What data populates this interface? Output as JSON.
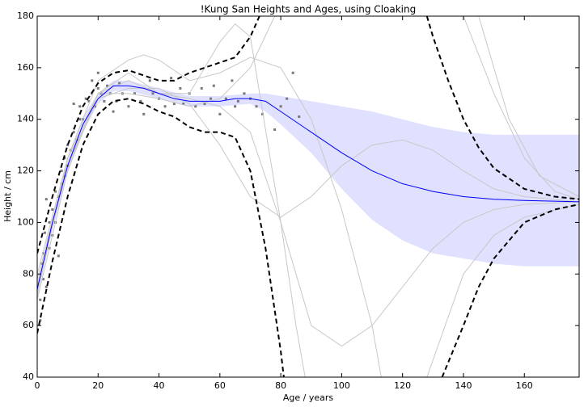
{
  "chart_data": {
    "type": "line",
    "title": "!Kung San Heights and Ages, using Cloaking",
    "x_label": "Age / years",
    "y_label": "Height / cm",
    "xlim": [
      0,
      178
    ],
    "ylim": [
      40,
      180
    ],
    "xticks": [
      0,
      20,
      40,
      60,
      80,
      100,
      120,
      140,
      160
    ],
    "yticks": [
      40,
      60,
      80,
      100,
      120,
      140,
      160,
      180
    ],
    "band": {
      "color": "#e0e0ff",
      "x": [
        0,
        5,
        10,
        15,
        20,
        25,
        30,
        40,
        50,
        60,
        70,
        75,
        80,
        90,
        100,
        110,
        120,
        130,
        140,
        150,
        160,
        178
      ],
      "lower": [
        71,
        97,
        119,
        135,
        146,
        151,
        151,
        148,
        145,
        145,
        146,
        143,
        138,
        127,
        113,
        101,
        93,
        88,
        86,
        84,
        83,
        83
      ],
      "upper": [
        77,
        103,
        125,
        141,
        150,
        155,
        155,
        152,
        149,
        149,
        150,
        150,
        149,
        147,
        145,
        143,
        140,
        137,
        135,
        134,
        134,
        134
      ]
    },
    "points": {
      "color": "#777777",
      "x": [
        1,
        1,
        1.5,
        2,
        2,
        2.5,
        3,
        3,
        4,
        4,
        5,
        5,
        6,
        6,
        7,
        7,
        8,
        8,
        9,
        9,
        10,
        10,
        11,
        12,
        12,
        13,
        14,
        14,
        15,
        16,
        17,
        18,
        18,
        19,
        20,
        20,
        21,
        22,
        23,
        24,
        25,
        26,
        27,
        28,
        30,
        32,
        34,
        35,
        37,
        38,
        40,
        42,
        44,
        45,
        47,
        48,
        50,
        52,
        54,
        55,
        57,
        58,
        60,
        62,
        64,
        65,
        66,
        68,
        70,
        72,
        74,
        78,
        80,
        82,
        84,
        86
      ],
      "values": [
        62,
        70,
        84,
        78,
        88,
        96,
        75,
        109,
        90,
        100,
        95,
        105,
        100,
        112,
        87,
        110,
        115,
        120,
        118,
        125,
        122,
        130,
        128,
        135,
        146,
        132,
        140,
        145,
        140,
        148,
        147,
        150,
        155,
        145,
        152,
        158,
        150,
        147,
        153,
        150,
        143,
        147,
        154,
        150,
        145,
        150,
        147,
        142,
        155,
        150,
        148,
        145,
        156,
        146,
        152,
        146,
        150,
        145,
        152,
        146,
        148,
        153,
        142,
        148,
        155,
        145,
        147,
        150,
        148,
        145,
        142,
        136,
        145,
        148,
        158,
        141
      ]
    },
    "series": [
      {
        "color": "#c8c8c8",
        "dash": false,
        "x": [
          0,
          10,
          20,
          30,
          40,
          50,
          60,
          65,
          70,
          80,
          85,
          88
        ],
        "values": [
          70,
          120,
          150,
          158,
          150,
          150,
          170,
          177,
          172,
          100,
          60,
          40
        ]
      },
      {
        "color": "#c8c8c8",
        "dash": false,
        "x": [
          0,
          10,
          20,
          30,
          40,
          50,
          60,
          70,
          80,
          90,
          100,
          110,
          120,
          130,
          140,
          150,
          160,
          178
        ],
        "values": [
          78,
          122,
          150,
          155,
          150,
          148,
          145,
          135,
          100,
          60,
          52,
          60,
          75,
          90,
          100,
          105,
          107,
          108
        ]
      },
      {
        "color": "#c8c8c8",
        "dash": false,
        "x": [
          0,
          10,
          20,
          30,
          40,
          50,
          60,
          70,
          80,
          90,
          100,
          110,
          120,
          130,
          140,
          150,
          160,
          178
        ],
        "values": [
          75,
          122,
          148,
          152,
          152,
          146,
          130,
          110,
          102,
          110,
          122,
          130,
          132,
          128,
          120,
          113,
          110,
          108
        ]
      },
      {
        "color": "#c8c8c8",
        "dash": false,
        "x": [
          0,
          10,
          20,
          30,
          35,
          40,
          50,
          60,
          70,
          80,
          90,
          100,
          110,
          113
        ],
        "values": [
          72,
          125,
          155,
          163,
          165,
          163,
          155,
          158,
          164,
          160,
          140,
          105,
          60,
          40
        ]
      },
      {
        "color": "#c8c8c8",
        "dash": false,
        "x": [
          0,
          10,
          20,
          30,
          40,
          50,
          60,
          70,
          78
        ],
        "values": [
          80,
          125,
          150,
          150,
          148,
          145,
          148,
          160,
          180
        ]
      },
      {
        "color": "#c8c8c8",
        "dash": false,
        "x": [
          140,
          150,
          160,
          170,
          178
        ],
        "values": [
          180,
          150,
          125,
          112,
          109
        ]
      },
      {
        "color": "#c8c8c8",
        "dash": false,
        "x": [
          145,
          155,
          165,
          178
        ],
        "values": [
          180,
          140,
          118,
          110
        ]
      },
      {
        "color": "#c8c8c8",
        "dash": false,
        "x": [
          128,
          140,
          150,
          160,
          178
        ],
        "values": [
          40,
          80,
          95,
          102,
          107
        ]
      },
      {
        "color": "#0000ff",
        "dash": false,
        "x": [
          0,
          5,
          10,
          15,
          20,
          25,
          30,
          35,
          40,
          45,
          50,
          55,
          60,
          65,
          70,
          75,
          80,
          90,
          100,
          110,
          120,
          130,
          140,
          150,
          160,
          178
        ],
        "values": [
          74,
          100,
          122,
          138,
          148,
          153,
          153,
          152,
          150,
          148,
          147,
          147,
          147,
          148,
          148,
          147,
          143,
          135,
          127,
          120,
          115,
          112,
          110,
          109,
          108.5,
          108
        ]
      },
      {
        "color": "#000000",
        "dash": true,
        "x": [
          0,
          5,
          10,
          15,
          20,
          25,
          30,
          35,
          40,
          45,
          50,
          55,
          60,
          65,
          70,
          73
        ],
        "values": [
          88,
          110,
          130,
          145,
          154,
          158,
          159,
          157,
          155,
          155,
          158,
          160,
          162,
          164,
          172,
          180
        ]
      },
      {
        "color": "#000000",
        "dash": true,
        "x": [
          128,
          130,
          135,
          140,
          145,
          150,
          160,
          170,
          178
        ],
        "values": [
          180,
          172,
          155,
          140,
          129,
          121,
          113,
          110,
          109
        ]
      },
      {
        "color": "#000000",
        "dash": true,
        "x": [
          0,
          5,
          10,
          15,
          20,
          25,
          30,
          35,
          40,
          45,
          50,
          55,
          60,
          65,
          70,
          75,
          80,
          81
        ],
        "values": [
          57,
          85,
          110,
          130,
          142,
          147,
          148,
          146,
          143,
          141,
          137,
          135,
          135,
          133,
          120,
          90,
          50,
          40
        ]
      },
      {
        "color": "#000000",
        "dash": true,
        "x": [
          133,
          140,
          145,
          150,
          160,
          170,
          178
        ],
        "values": [
          40,
          60,
          75,
          86,
          100,
          105,
          107
        ]
      }
    ]
  }
}
